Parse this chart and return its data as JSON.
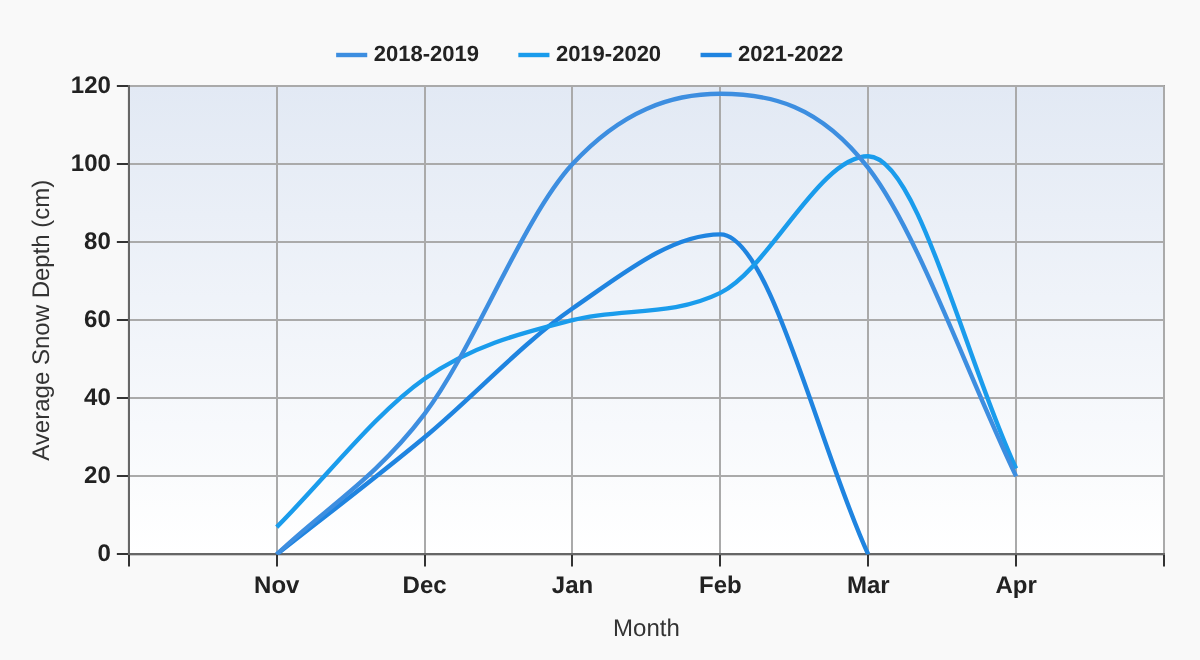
{
  "chart_data": {
    "type": "line",
    "xlabel": "Month",
    "ylabel": "Average Snow Depth (cm)",
    "categories": [
      null,
      "Nov",
      "Dec",
      "Jan",
      "Feb",
      "Mar",
      "Apr",
      null
    ],
    "series": [
      {
        "name": "2018-2019",
        "color": "#3d8ee0",
        "values": [
          null,
          0,
          36,
          100,
          118,
          99,
          20,
          null
        ]
      },
      {
        "name": "2019-2020",
        "color": "#1a9cec",
        "values": [
          null,
          7,
          45,
          60,
          67,
          102,
          22,
          null
        ]
      },
      {
        "name": "2021-2022",
        "color": "#1f84e0",
        "values": [
          null,
          0,
          30,
          63,
          82,
          0,
          null,
          null
        ]
      }
    ],
    "ylim": [
      0,
      120
    ],
    "yticks": [
      0,
      20,
      40,
      60,
      80,
      100,
      120
    ],
    "grid": true,
    "legend": "top",
    "marker": "none",
    "line_style": "solid"
  }
}
